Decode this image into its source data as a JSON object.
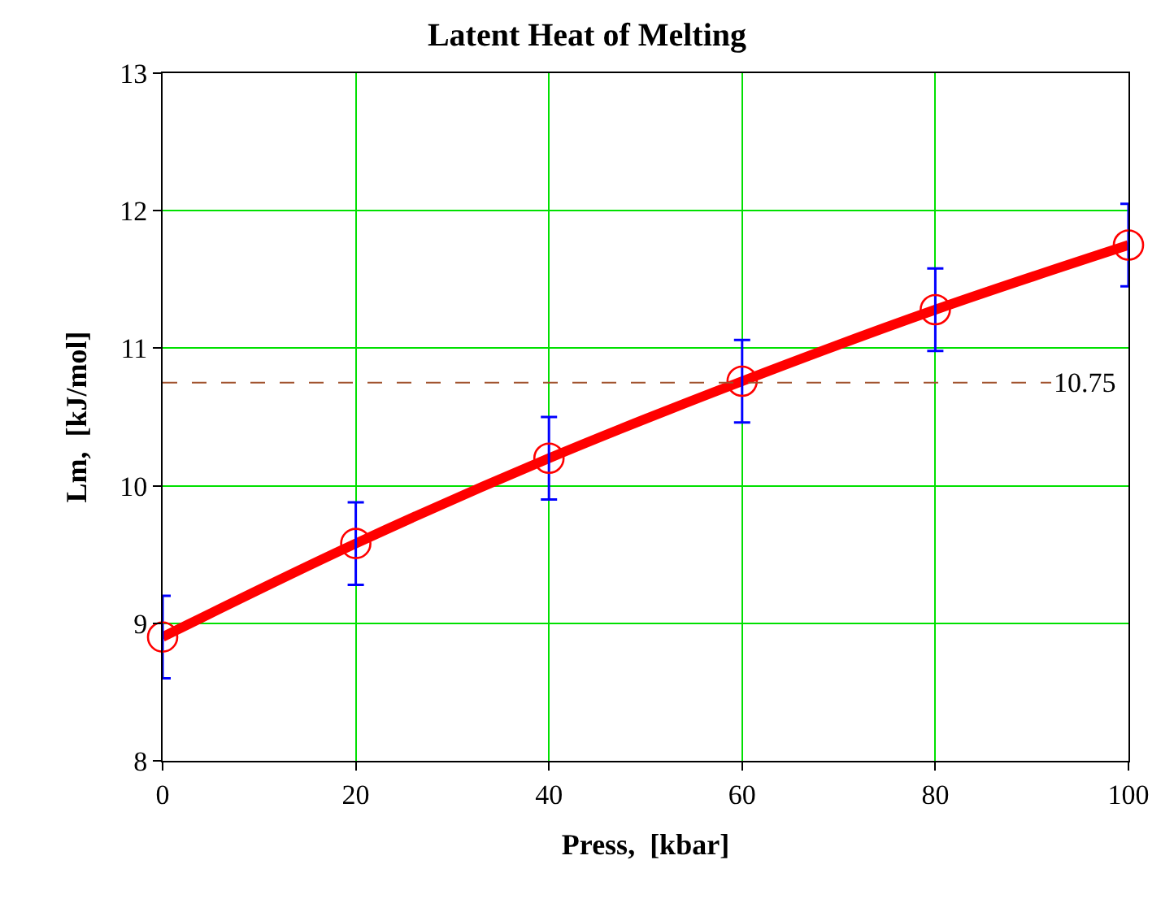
{
  "chart_data": {
    "type": "scatter",
    "title": "Latent Heat of Melting",
    "xlabel": "Press,  [kbar]",
    "ylabel": "Lm,  [kJ/mol]",
    "x": [
      0,
      20,
      40,
      60,
      80,
      100
    ],
    "series": [
      {
        "type": "line",
        "color": "#ff0000",
        "x": [
          0,
          20,
          40,
          60,
          80,
          100
        ],
        "values": [
          8.9,
          9.58,
          10.2,
          10.76,
          11.28,
          11.75
        ],
        "marker": "none",
        "line_style": "solid"
      },
      {
        "color": "#ff0000",
        "values": [
          8.9,
          9.58,
          10.2,
          10.76,
          11.28,
          11.75
        ],
        "errors": [
          0.3,
          0.3,
          0.3,
          0.3,
          0.3,
          0.3
        ],
        "marker": "circle"
      }
    ],
    "ref_lines": [
      {
        "axis": "y",
        "value": 10.75,
        "label": "10.75",
        "color": "#a0522d",
        "line_style": "dashed"
      }
    ],
    "xlim": [
      0,
      100
    ],
    "xticks": [
      0,
      20,
      40,
      60,
      80,
      100
    ],
    "ylim": [
      8,
      13
    ],
    "yticks": [
      8,
      9,
      10,
      11,
      12,
      13
    ],
    "grid": true,
    "legend": false
  }
}
